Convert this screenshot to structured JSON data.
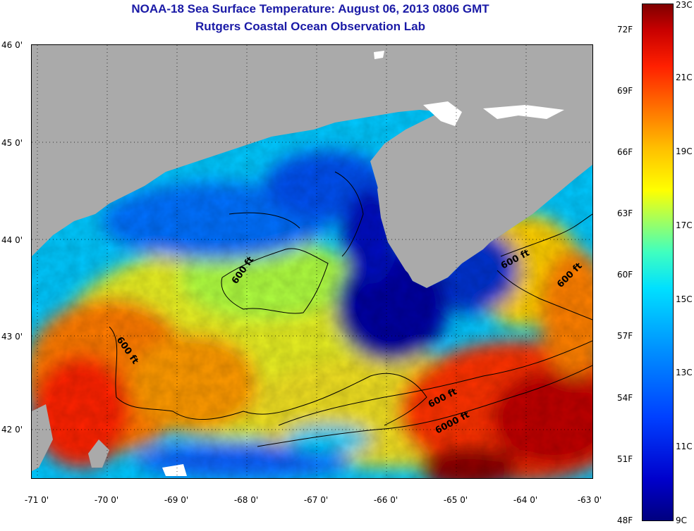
{
  "header": {
    "title": "NOAA-18 Sea Surface Temperature:  August 06, 2013 0806 GMT",
    "subtitle": "Rutgers Coastal Ocean Observation Lab"
  },
  "axes": {
    "lat_labels": [
      "46 0'",
      "45 0'",
      "44 0'",
      "43 0'",
      "42 0'"
    ],
    "lon_labels": [
      "-71 0'",
      "-70 0'",
      "-69 0'",
      "-68 0'",
      "-67 0'",
      "-66 0'",
      "-65 0'",
      "-64 0'",
      "-63 0'"
    ]
  },
  "contours": {
    "label_600_west": "600 ft",
    "label_600_center": "600 ft",
    "label_600_east": "600 ft",
    "label_600_ne": "600 ft",
    "label_600_south": "600 ft",
    "label_6000": "6000 ft"
  },
  "colorbar": {
    "fahrenheit": [
      "72F",
      "69F",
      "66F",
      "63F",
      "60F",
      "57F",
      "54F",
      "51F",
      "48F"
    ],
    "celsius": [
      "23C",
      "21C",
      "19C",
      "17C",
      "15C",
      "13C",
      "11C",
      "9C"
    ]
  },
  "colors": {
    "title": "#1a1aa6",
    "land": "#aaaaaa",
    "cold": "#00007f",
    "warm": "#7f0000"
  }
}
